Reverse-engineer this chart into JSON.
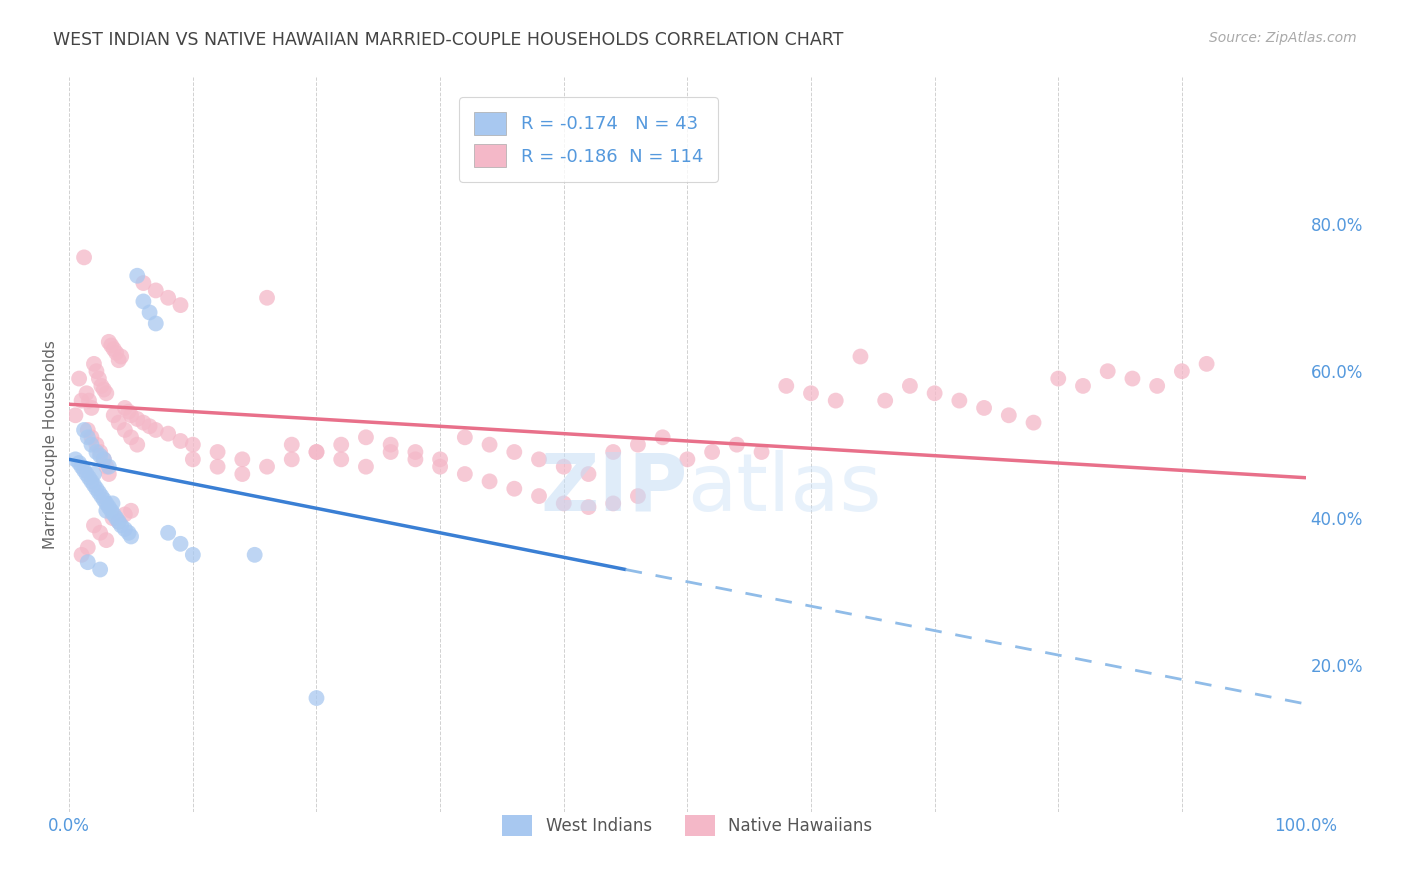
{
  "title": "WEST INDIAN VS NATIVE HAWAIIAN MARRIED-COUPLE HOUSEHOLDS CORRELATION CHART",
  "source": "Source: ZipAtlas.com",
  "ylabel": "Married-couple Households",
  "xlim": [
    0,
    1.0
  ],
  "ylim": [
    0,
    1.0
  ],
  "west_indian_R": -0.174,
  "west_indian_N": 43,
  "native_hawaiian_R": -0.186,
  "native_hawaiian_N": 114,
  "west_indian_color": "#a8c8f0",
  "native_hawaiian_color": "#f4b8c8",
  "wi_line_solid_color": "#3a7fd4",
  "wi_line_dashed_color": "#90bce8",
  "nh_line_color": "#e8708a",
  "background_color": "#ffffff",
  "title_color": "#444444",
  "source_color": "#aaaaaa",
  "axis_label_color": "#5599dd",
  "watermark_color": "#c5ddf5",
  "wi_x": [
    0.005,
    0.008,
    0.01,
    0.012,
    0.014,
    0.016,
    0.018,
    0.02,
    0.022,
    0.024,
    0.026,
    0.028,
    0.03,
    0.032,
    0.034,
    0.036,
    0.038,
    0.04,
    0.042,
    0.045,
    0.048,
    0.05,
    0.055,
    0.06,
    0.065,
    0.07,
    0.08,
    0.09,
    0.1,
    0.012,
    0.015,
    0.018,
    0.022,
    0.025,
    0.028,
    0.032,
    0.02,
    0.015,
    0.025,
    0.035,
    0.03,
    0.15,
    0.2
  ],
  "wi_y": [
    0.48,
    0.475,
    0.47,
    0.465,
    0.46,
    0.455,
    0.45,
    0.445,
    0.44,
    0.435,
    0.43,
    0.425,
    0.42,
    0.415,
    0.41,
    0.405,
    0.4,
    0.395,
    0.39,
    0.385,
    0.38,
    0.375,
    0.73,
    0.695,
    0.68,
    0.665,
    0.38,
    0.365,
    0.35,
    0.52,
    0.51,
    0.5,
    0.49,
    0.485,
    0.48,
    0.47,
    0.46,
    0.34,
    0.33,
    0.42,
    0.41,
    0.35,
    0.155
  ],
  "nh_x": [
    0.005,
    0.008,
    0.01,
    0.012,
    0.014,
    0.016,
    0.018,
    0.02,
    0.022,
    0.024,
    0.026,
    0.028,
    0.03,
    0.032,
    0.034,
    0.036,
    0.038,
    0.04,
    0.042,
    0.045,
    0.048,
    0.05,
    0.055,
    0.06,
    0.065,
    0.07,
    0.08,
    0.09,
    0.1,
    0.12,
    0.14,
    0.16,
    0.18,
    0.2,
    0.22,
    0.24,
    0.26,
    0.28,
    0.3,
    0.32,
    0.34,
    0.36,
    0.38,
    0.4,
    0.42,
    0.44,
    0.46,
    0.48,
    0.5,
    0.52,
    0.54,
    0.56,
    0.58,
    0.6,
    0.62,
    0.64,
    0.66,
    0.68,
    0.7,
    0.72,
    0.74,
    0.76,
    0.78,
    0.8,
    0.82,
    0.84,
    0.86,
    0.88,
    0.9,
    0.92,
    0.015,
    0.018,
    0.022,
    0.025,
    0.028,
    0.03,
    0.032,
    0.036,
    0.04,
    0.045,
    0.05,
    0.055,
    0.06,
    0.07,
    0.08,
    0.09,
    0.1,
    0.12,
    0.14,
    0.16,
    0.18,
    0.2,
    0.22,
    0.24,
    0.26,
    0.28,
    0.3,
    0.32,
    0.34,
    0.36,
    0.38,
    0.4,
    0.42,
    0.44,
    0.46,
    0.01,
    0.015,
    0.02,
    0.025,
    0.03,
    0.035,
    0.04,
    0.045,
    0.05
  ],
  "nh_y": [
    0.54,
    0.59,
    0.56,
    0.755,
    0.57,
    0.56,
    0.55,
    0.61,
    0.6,
    0.59,
    0.58,
    0.575,
    0.57,
    0.64,
    0.635,
    0.63,
    0.625,
    0.615,
    0.62,
    0.55,
    0.545,
    0.54,
    0.535,
    0.53,
    0.525,
    0.52,
    0.515,
    0.505,
    0.5,
    0.49,
    0.48,
    0.47,
    0.5,
    0.49,
    0.48,
    0.47,
    0.5,
    0.49,
    0.48,
    0.51,
    0.5,
    0.49,
    0.48,
    0.47,
    0.46,
    0.49,
    0.5,
    0.51,
    0.48,
    0.49,
    0.5,
    0.49,
    0.58,
    0.57,
    0.56,
    0.62,
    0.56,
    0.58,
    0.57,
    0.56,
    0.55,
    0.54,
    0.53,
    0.59,
    0.58,
    0.6,
    0.59,
    0.58,
    0.6,
    0.61,
    0.52,
    0.51,
    0.5,
    0.49,
    0.48,
    0.47,
    0.46,
    0.54,
    0.53,
    0.52,
    0.51,
    0.5,
    0.72,
    0.71,
    0.7,
    0.69,
    0.48,
    0.47,
    0.46,
    0.7,
    0.48,
    0.49,
    0.5,
    0.51,
    0.49,
    0.48,
    0.47,
    0.46,
    0.45,
    0.44,
    0.43,
    0.42,
    0.415,
    0.42,
    0.43,
    0.35,
    0.36,
    0.39,
    0.38,
    0.37,
    0.4,
    0.395,
    0.405,
    0.41
  ],
  "wi_line_x0": 0.0,
  "wi_line_y0": 0.48,
  "wi_line_x1": 0.45,
  "wi_line_y1": 0.33,
  "wi_line_dashed_x0": 0.45,
  "wi_line_dashed_y0": 0.33,
  "wi_line_dashed_x1": 1.0,
  "wi_line_dashed_y1": 0.147,
  "nh_line_x0": 0.0,
  "nh_line_y0": 0.555,
  "nh_line_x1": 1.0,
  "nh_line_y1": 0.455
}
